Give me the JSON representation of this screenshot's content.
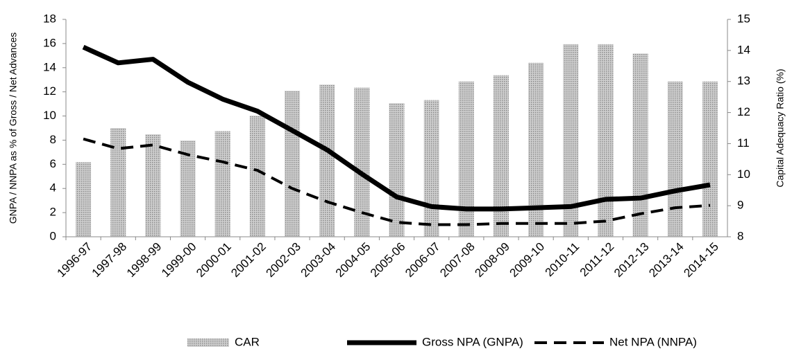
{
  "chart_data": {
    "type": "bar-line",
    "y_label": "GNPA / NNPA as % of Gross / Net Advances",
    "y2_label": "Capital Adequacy Ratio (%)",
    "categories": [
      "1996-97",
      "1997-98",
      "1998-99",
      "1999-00",
      "2000-01",
      "2001-02",
      "2002-03",
      "2003-04",
      "2004-05",
      "2005-06",
      "2006-07",
      "2007-08",
      "2008-09",
      "2009-10",
      "2010-11",
      "2011-12",
      "2012-13",
      "2013-14",
      "2014-15"
    ],
    "ylim": [
      0,
      18
    ],
    "yticks": [
      0,
      2,
      4,
      6,
      8,
      10,
      12,
      14,
      16,
      18
    ],
    "y2lim": [
      8,
      15
    ],
    "y2ticks": [
      8,
      9,
      10,
      11,
      12,
      13,
      14,
      15
    ],
    "legend": "bottom",
    "series": [
      {
        "name": "CAR",
        "type": "bar",
        "axis": "y2",
        "color": "#8a8a8a",
        "values": [
          10.4,
          11.5,
          11.3,
          11.1,
          11.4,
          11.9,
          12.7,
          12.9,
          12.8,
          12.3,
          12.4,
          13.0,
          13.2,
          13.6,
          14.2,
          14.2,
          13.9,
          13.0,
          13.0
        ]
      },
      {
        "name": "Gross NPA (GNPA)",
        "type": "line",
        "color": "#000000",
        "dash": "solid",
        "values": [
          15.7,
          14.4,
          14.7,
          12.8,
          11.4,
          10.4,
          8.8,
          7.2,
          5.2,
          3.3,
          2.5,
          2.3,
          2.3,
          2.4,
          2.5,
          3.1,
          3.2,
          3.8,
          4.3
        ]
      },
      {
        "name": "Net NPA (NNPA)",
        "type": "line",
        "color": "#000000",
        "dash": "dashed",
        "values": [
          8.1,
          7.3,
          7.6,
          6.8,
          6.2,
          5.5,
          4.0,
          2.9,
          2.0,
          1.2,
          1.0,
          1.0,
          1.1,
          1.1,
          1.1,
          1.3,
          1.9,
          2.4,
          2.6
        ]
      }
    ]
  }
}
